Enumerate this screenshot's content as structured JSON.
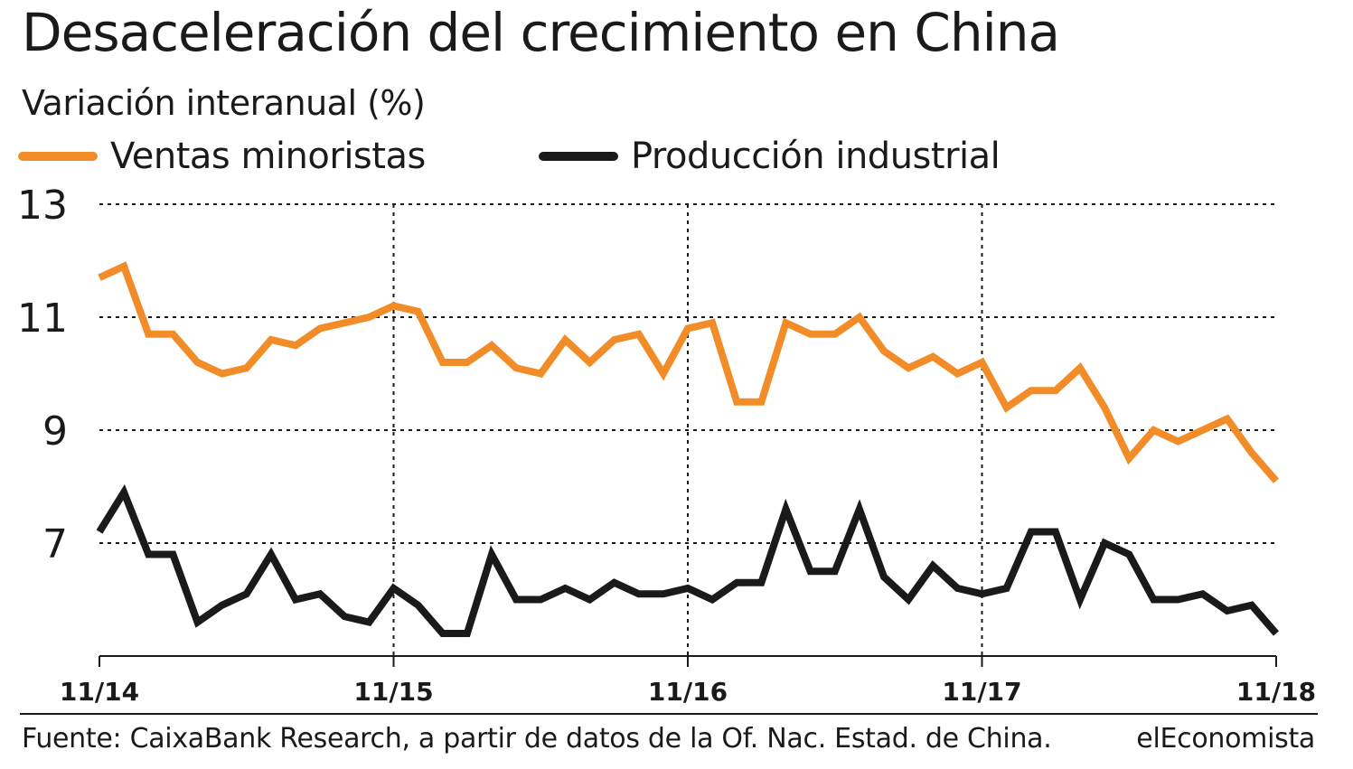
{
  "chart_data": {
    "type": "line",
    "title": "Desaceleración del crecimiento en China",
    "subtitle": "Variación interanual (%)",
    "source": "Fuente: CaixaBank Research, a partir de datos de la Of. Nac. Estad. de China.",
    "brand": "elEconomista",
    "ylim": [
      5,
      13
    ],
    "y_ticks": [
      13,
      11,
      9,
      7
    ],
    "x_ticks": [
      "11/14",
      "11/15",
      "11/16",
      "11/17",
      "11/18"
    ],
    "x_tick_months": [
      0,
      12,
      24,
      36,
      48
    ],
    "xlim": [
      0,
      48
    ],
    "grid": true,
    "legend_position": "top",
    "series": [
      {
        "name": "Ventas minoristas",
        "color": "#f28c28",
        "x": [
          0,
          1,
          2,
          3,
          4,
          5,
          6,
          7,
          8,
          9,
          10,
          11,
          12,
          13,
          14,
          15,
          16,
          17,
          18,
          19,
          20,
          21,
          22,
          23,
          24,
          25,
          26,
          27,
          28,
          29,
          30,
          31,
          32,
          33,
          34,
          35,
          36,
          37,
          38,
          39,
          40,
          41,
          42,
          43,
          44,
          45,
          46,
          47,
          48
        ],
        "values": [
          11.7,
          11.9,
          10.7,
          10.7,
          10.2,
          10.0,
          10.1,
          10.6,
          10.5,
          10.8,
          10.9,
          11.0,
          11.2,
          11.1,
          10.2,
          10.2,
          10.5,
          10.1,
          10.0,
          10.6,
          10.2,
          10.6,
          10.7,
          10.0,
          10.8,
          10.9,
          9.5,
          9.5,
          10.9,
          10.7,
          10.7,
          11.0,
          10.4,
          10.1,
          10.3,
          10.0,
          10.2,
          9.4,
          9.7,
          9.7,
          10.1,
          9.4,
          8.5,
          9.0,
          8.8,
          9.0,
          9.2,
          8.6,
          8.1
        ]
      },
      {
        "name": "Producción industrial",
        "color": "#1a1a1a",
        "x": [
          0,
          1,
          2,
          3,
          4,
          5,
          6,
          7,
          8,
          9,
          10,
          11,
          12,
          13,
          14,
          15,
          16,
          17,
          18,
          19,
          20,
          21,
          22,
          23,
          24,
          25,
          26,
          27,
          28,
          29,
          30,
          31,
          32,
          33,
          34,
          35,
          36,
          37,
          38,
          39,
          40,
          41,
          42,
          43,
          44,
          45,
          46,
          47,
          48
        ],
        "values": [
          7.2,
          7.9,
          6.8,
          6.8,
          5.6,
          5.9,
          6.1,
          6.8,
          6.0,
          6.1,
          5.7,
          5.6,
          6.2,
          5.9,
          5.4,
          5.4,
          6.8,
          6.0,
          6.0,
          6.2,
          6.0,
          6.3,
          6.1,
          6.1,
          6.2,
          6.0,
          6.3,
          6.3,
          7.6,
          6.5,
          6.5,
          7.6,
          6.4,
          6.0,
          6.6,
          6.2,
          6.1,
          6.2,
          7.2,
          7.2,
          6.0,
          7.0,
          6.8,
          6.0,
          6.0,
          6.1,
          5.8,
          5.9,
          5.4
        ]
      }
    ]
  }
}
